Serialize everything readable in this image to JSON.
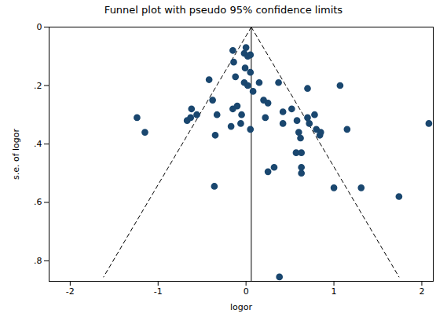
{
  "chart_data": {
    "type": "scatter",
    "title": "Funnel plot with pseudo 95% confidence limits",
    "x_label": "logor",
    "y_label": "s.e. of logor",
    "color": "#1a476f",
    "marker": "circle",
    "x": [
      -1.24,
      -1.15,
      -0.67,
      -0.62,
      -0.56,
      -0.63,
      -0.42,
      -0.38,
      -0.35,
      -0.33,
      -0.36,
      -0.15,
      -0.14,
      -0.12,
      -0.15,
      -0.1,
      -0.17,
      -0.05,
      -0.06,
      0.0,
      -0.02,
      0.02,
      0.05,
      -0.01,
      0.05,
      -0.02,
      0.02,
      0.08,
      0.05,
      0.15,
      0.2,
      0.25,
      0.22,
      0.25,
      0.32,
      0.38,
      0.37,
      0.42,
      0.42,
      0.52,
      0.58,
      0.57,
      0.62,
      0.6,
      0.63,
      0.63,
      0.63,
      0.7,
      0.7,
      0.72,
      0.78,
      0.8,
      0.84,
      0.85,
      1.07,
      1.15,
      1.0,
      1.31,
      1.74,
      2.08
    ],
    "y": [
      0.31,
      0.36,
      0.32,
      0.28,
      0.3,
      0.31,
      0.18,
      0.25,
      0.37,
      0.3,
      0.545,
      0.08,
      0.12,
      0.17,
      0.28,
      0.27,
      0.34,
      0.3,
      0.33,
      0.07,
      0.09,
      0.1,
      0.095,
      0.14,
      0.155,
      0.19,
      0.2,
      0.22,
      0.35,
      0.19,
      0.25,
      0.26,
      0.31,
      0.495,
      0.48,
      0.855,
      0.19,
      0.29,
      0.33,
      0.28,
      0.32,
      0.43,
      0.38,
      0.36,
      0.43,
      0.48,
      0.5,
      0.21,
      0.31,
      0.33,
      0.3,
      0.35,
      0.37,
      0.36,
      0.2,
      0.35,
      0.55,
      0.55,
      0.58,
      0.33
    ],
    "lines": [
      {
        "x": [
          0.06,
          -1.62
        ],
        "y": [
          0,
          0.855
        ],
        "line_style": "dashed"
      },
      {
        "x": [
          0.06,
          1.74
        ],
        "y": [
          0,
          0.855
        ],
        "line_style": "dashed"
      },
      {
        "x": [
          0.06,
          0.06
        ],
        "y": [
          0,
          0.87
        ],
        "line_style": "solid"
      }
    ],
    "xlim": [
      -2.24,
      2.13
    ],
    "xticks": [
      -2,
      -1,
      0,
      1,
      2
    ],
    "ylim": [
      0,
      0.87
    ],
    "yticks": [
      0,
      {
        "value": 0.2,
        "label": ".2"
      },
      {
        "value": 0.4,
        "label": ".4"
      },
      {
        "value": 0.6,
        "label": ".6"
      },
      {
        "value": 0.8,
        "label": ".8"
      }
    ],
    "grid": false
  }
}
